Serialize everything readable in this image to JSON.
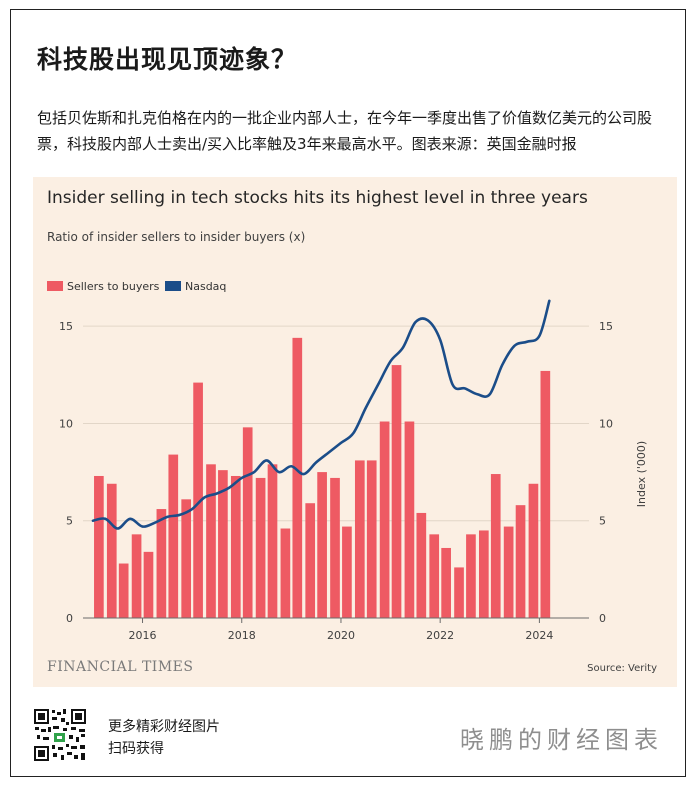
{
  "header": {
    "title": "科技股出现见顶迹象？",
    "description": "包括贝佐斯和扎克伯格在内的一批企业内部人士，在今年一季度出售了价值数亿美元的公司股票，科技股内部人士卖出/买入比率触及3年来最高水平。图表来源：英国金融时报"
  },
  "chart_data": {
    "type": "bar",
    "title": "Insider selling in tech stocks hits its highest level in three years",
    "subtitle": "Ratio of insider sellers to insider buyers (x)",
    "ylabel_right": "Index ('000)",
    "left_ticks": [
      "0",
      "5",
      "10",
      "15"
    ],
    "right_ticks": [
      "0",
      "5",
      "10",
      "15"
    ],
    "x_tick_labels": [
      "2016",
      "2018",
      "2020",
      "2022",
      "2024"
    ],
    "x_tick_values": [
      2016,
      2018,
      2020,
      2022,
      2024
    ],
    "ylim": [
      0,
      16.5
    ],
    "xlim": [
      2014.8,
      2025.0
    ],
    "legend": [
      {
        "name": "Sellers to buyers",
        "color": "#ee5a63"
      },
      {
        "name": "Nasdaq",
        "color": "#1b4d89"
      }
    ],
    "series": [
      {
        "name": "Sellers to buyers",
        "type": "bar",
        "color": "#ee5a63",
        "x": [
          2015.12,
          2015.38,
          2015.62,
          2015.88,
          2016.12,
          2016.38,
          2016.62,
          2016.88,
          2017.12,
          2017.38,
          2017.62,
          2017.88,
          2018.12,
          2018.38,
          2018.62,
          2018.88,
          2019.12,
          2019.38,
          2019.62,
          2019.88,
          2020.12,
          2020.38,
          2020.62,
          2020.88,
          2021.12,
          2021.38,
          2021.62,
          2021.88,
          2022.12,
          2022.38,
          2022.62,
          2022.88,
          2023.12,
          2023.38,
          2023.62,
          2023.88,
          2024.12
        ],
        "values": [
          7.3,
          6.9,
          2.8,
          4.3,
          3.4,
          5.6,
          8.4,
          6.1,
          12.1,
          7.9,
          7.6,
          7.3,
          9.8,
          7.2,
          7.9,
          4.6,
          14.4,
          5.9,
          7.5,
          7.2,
          4.7,
          8.1,
          8.1,
          10.1,
          13.0,
          10.1,
          5.4,
          4.3,
          3.6,
          2.6,
          4.3,
          4.5,
          7.4,
          4.7,
          5.8,
          6.9,
          12.7
        ]
      },
      {
        "name": "Nasdaq",
        "type": "line",
        "color": "#1b4d89",
        "x": [
          2015.0,
          2015.25,
          2015.5,
          2015.75,
          2016.0,
          2016.25,
          2016.5,
          2016.75,
          2017.0,
          2017.25,
          2017.5,
          2017.75,
          2018.0,
          2018.25,
          2018.5,
          2018.75,
          2019.0,
          2019.25,
          2019.5,
          2019.75,
          2020.0,
          2020.25,
          2020.5,
          2020.75,
          2021.0,
          2021.25,
          2021.5,
          2021.75,
          2022.0,
          2022.25,
          2022.5,
          2022.75,
          2023.0,
          2023.25,
          2023.5,
          2023.75,
          2024.0,
          2024.2
        ],
        "values": [
          5.0,
          5.1,
          4.6,
          5.1,
          4.7,
          4.9,
          5.2,
          5.3,
          5.6,
          6.2,
          6.4,
          6.7,
          7.2,
          7.5,
          8.1,
          7.5,
          7.8,
          7.4,
          8.0,
          8.5,
          9.0,
          9.5,
          10.8,
          12.0,
          13.2,
          13.9,
          15.2,
          15.3,
          14.3,
          12.0,
          11.8,
          11.5,
          11.5,
          13.0,
          14.0,
          14.2,
          14.5,
          16.3
        ]
      }
    ],
    "source": "Source: Verity",
    "brand": "FINANCIAL TIMES"
  },
  "footer": {
    "line1": "更多精彩财经图片",
    "line2": "扫码获得",
    "brand": "晓鹏的财经图表"
  }
}
